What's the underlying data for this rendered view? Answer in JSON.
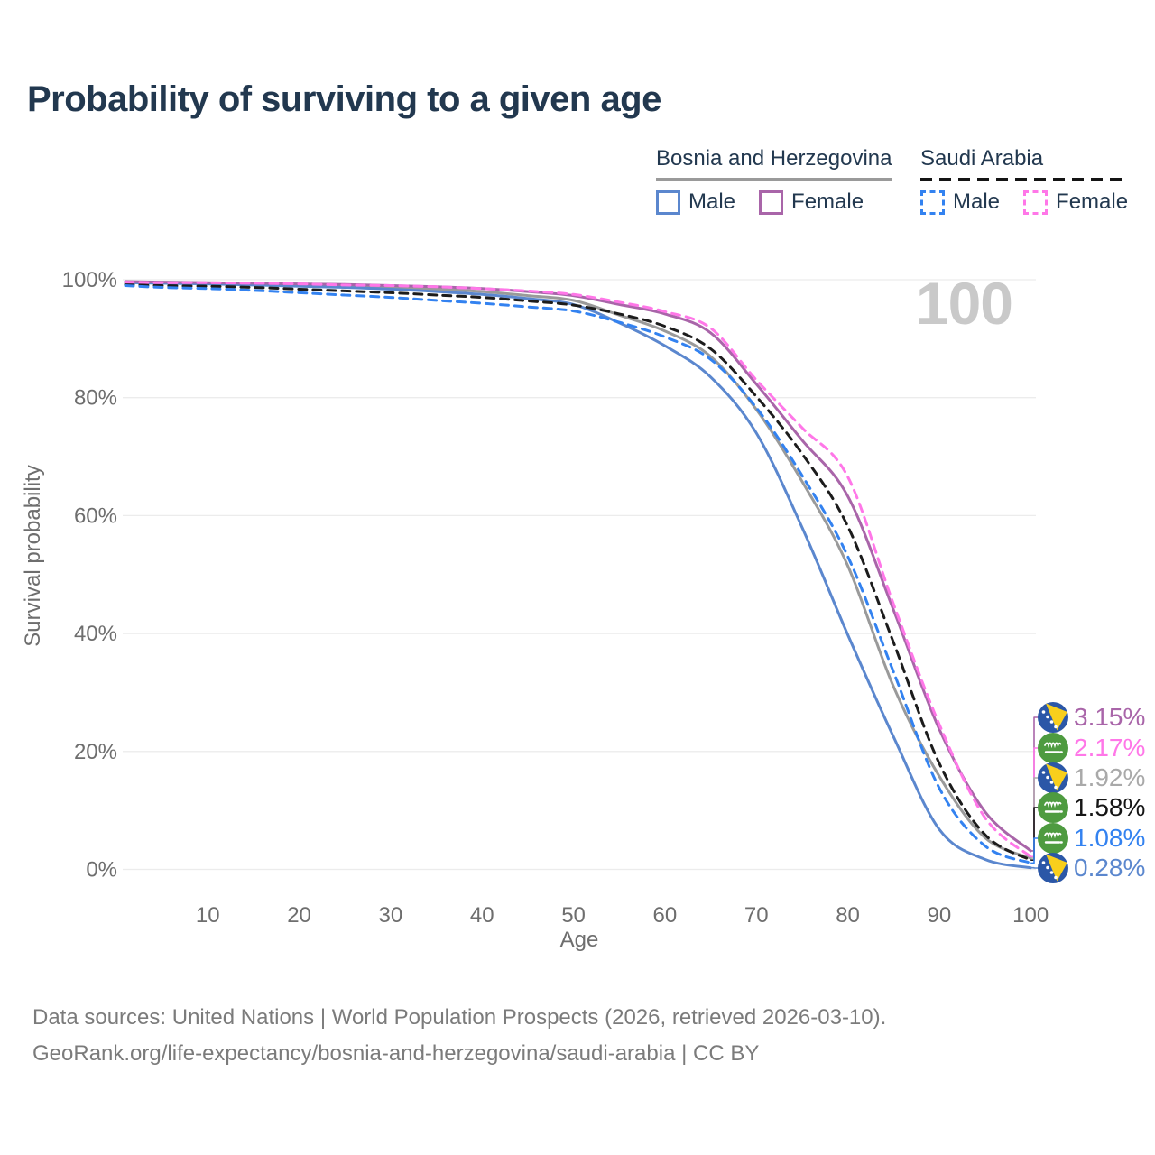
{
  "title": "Probability of surviving to a given age",
  "watermark_age": "100",
  "legend": {
    "groups": [
      {
        "label": "Bosnia and Herzegovina",
        "line_style": "solid",
        "items": [
          {
            "label": "Male",
            "color": "#5b87ce"
          },
          {
            "label": "Female",
            "color": "#a965a9"
          }
        ]
      },
      {
        "label": "Saudi Arabia",
        "line_style": "dashed",
        "items": [
          {
            "label": "Male",
            "color": "#3382f0"
          },
          {
            "label": "Female",
            "color": "#ff77e8"
          }
        ]
      }
    ]
  },
  "chart_data": {
    "type": "line",
    "title": "Probability of surviving to a given age",
    "xlabel": "Age",
    "ylabel": "Survival probability",
    "xlim": [
      0,
      100
    ],
    "ylim": [
      0,
      100
    ],
    "grid": true,
    "legend_position": "top-right",
    "x_tick_values": [
      10,
      20,
      30,
      40,
      50,
      60,
      70,
      80,
      90,
      100
    ],
    "x_tick_labels": [
      "10",
      "20",
      "30",
      "40",
      "50",
      "60",
      "70",
      "80",
      "90",
      "100"
    ],
    "y_tick_values": [
      0,
      20,
      40,
      60,
      80,
      100
    ],
    "y_tick_labels": [
      "0%",
      "20%",
      "40%",
      "60%",
      "80%",
      "100%"
    ],
    "ages": [
      1,
      5,
      10,
      15,
      20,
      25,
      30,
      35,
      40,
      45,
      50,
      55,
      60,
      65,
      70,
      75,
      80,
      85,
      90,
      95,
      100
    ],
    "series": [
      {
        "key": "ba_all",
        "name": "Bosnia and Herzegovina — Both sexes",
        "color": "#9a9a9a",
        "dashed": false,
        "values": [
          99.6,
          99.5,
          99.4,
          99.2,
          99.1,
          98.9,
          98.7,
          98.4,
          98.0,
          97.3,
          96.5,
          94.0,
          91.3,
          87.0,
          78.0,
          65.8,
          51.5,
          31.0,
          15.8,
          5.4,
          1.92
        ]
      },
      {
        "key": "ba_male",
        "name": "Bosnia and Herzegovina — Male",
        "color": "#5b87ce",
        "dashed": false,
        "values": [
          99.5,
          99.4,
          99.3,
          99.1,
          98.9,
          98.7,
          98.4,
          98.0,
          97.5,
          96.8,
          95.8,
          92.7,
          88.8,
          83.5,
          74.0,
          58.0,
          39.8,
          22.5,
          6.8,
          1.7,
          0.28
        ]
      },
      {
        "key": "ba_female",
        "name": "Bosnia and Herzegovina — Female",
        "color": "#a965a9",
        "dashed": false,
        "values": [
          99.7,
          99.6,
          99.5,
          99.4,
          99.3,
          99.2,
          99.0,
          98.8,
          98.5,
          98.0,
          97.3,
          95.8,
          94.2,
          91.0,
          82.3,
          72.8,
          63.3,
          44.0,
          23.8,
          9.8,
          3.15
        ]
      },
      {
        "key": "sa_all",
        "name": "Saudi Arabia — Both sexes",
        "color": "#1c1c1c",
        "dashed": true,
        "values": [
          99.2,
          99.0,
          98.9,
          98.7,
          98.4,
          98.1,
          97.8,
          97.4,
          97.0,
          96.4,
          95.7,
          94.2,
          92.1,
          88.3,
          80.2,
          70.5,
          58.2,
          38.5,
          18.0,
          5.9,
          1.58
        ]
      },
      {
        "key": "sa_male",
        "name": "Saudi Arabia — Male",
        "color": "#3382f0",
        "dashed": true,
        "values": [
          99.0,
          98.7,
          98.5,
          98.2,
          97.8,
          97.4,
          97.0,
          96.5,
          96.0,
          95.4,
          94.7,
          92.8,
          90.3,
          86.5,
          78.3,
          66.8,
          53.1,
          33.5,
          13.8,
          4.0,
          1.08
        ]
      },
      {
        "key": "sa_female",
        "name": "Saudi Arabia — Female",
        "color": "#ff77e8",
        "dashed": true,
        "values": [
          99.6,
          99.5,
          99.5,
          99.4,
          99.3,
          99.1,
          99.0,
          98.8,
          98.5,
          98.1,
          97.5,
          96.2,
          94.6,
          91.8,
          83.0,
          74.9,
          66.6,
          45.0,
          24.6,
          8.8,
          2.17
        ]
      }
    ]
  },
  "annotations": [
    {
      "series_key": "ba_female",
      "value": "3.15%",
      "color": "#a965a9",
      "flag": "bosnia"
    },
    {
      "series_key": "sa_female",
      "value": "2.17%",
      "color": "#ff77e8",
      "flag": "saudi"
    },
    {
      "series_key": "ba_all",
      "value": "1.92%",
      "color": "#a9a9a9",
      "flag": "bosnia"
    },
    {
      "series_key": "sa_all",
      "value": "1.58%",
      "color": "#151515",
      "flag": "saudi"
    },
    {
      "series_key": "sa_male",
      "value": "1.08%",
      "color": "#3382f0",
      "flag": "saudi"
    },
    {
      "series_key": "ba_male",
      "value": "0.28%",
      "color": "#5b87ce",
      "flag": "bosnia"
    }
  ],
  "footer": {
    "line1": "Data sources: United Nations | World Population Prospects (2026, retrieved 2026-03-10).",
    "line2": "GeoRank.org/life-expectancy/bosnia-and-herzegovina/saudi-arabia | CC BY"
  }
}
